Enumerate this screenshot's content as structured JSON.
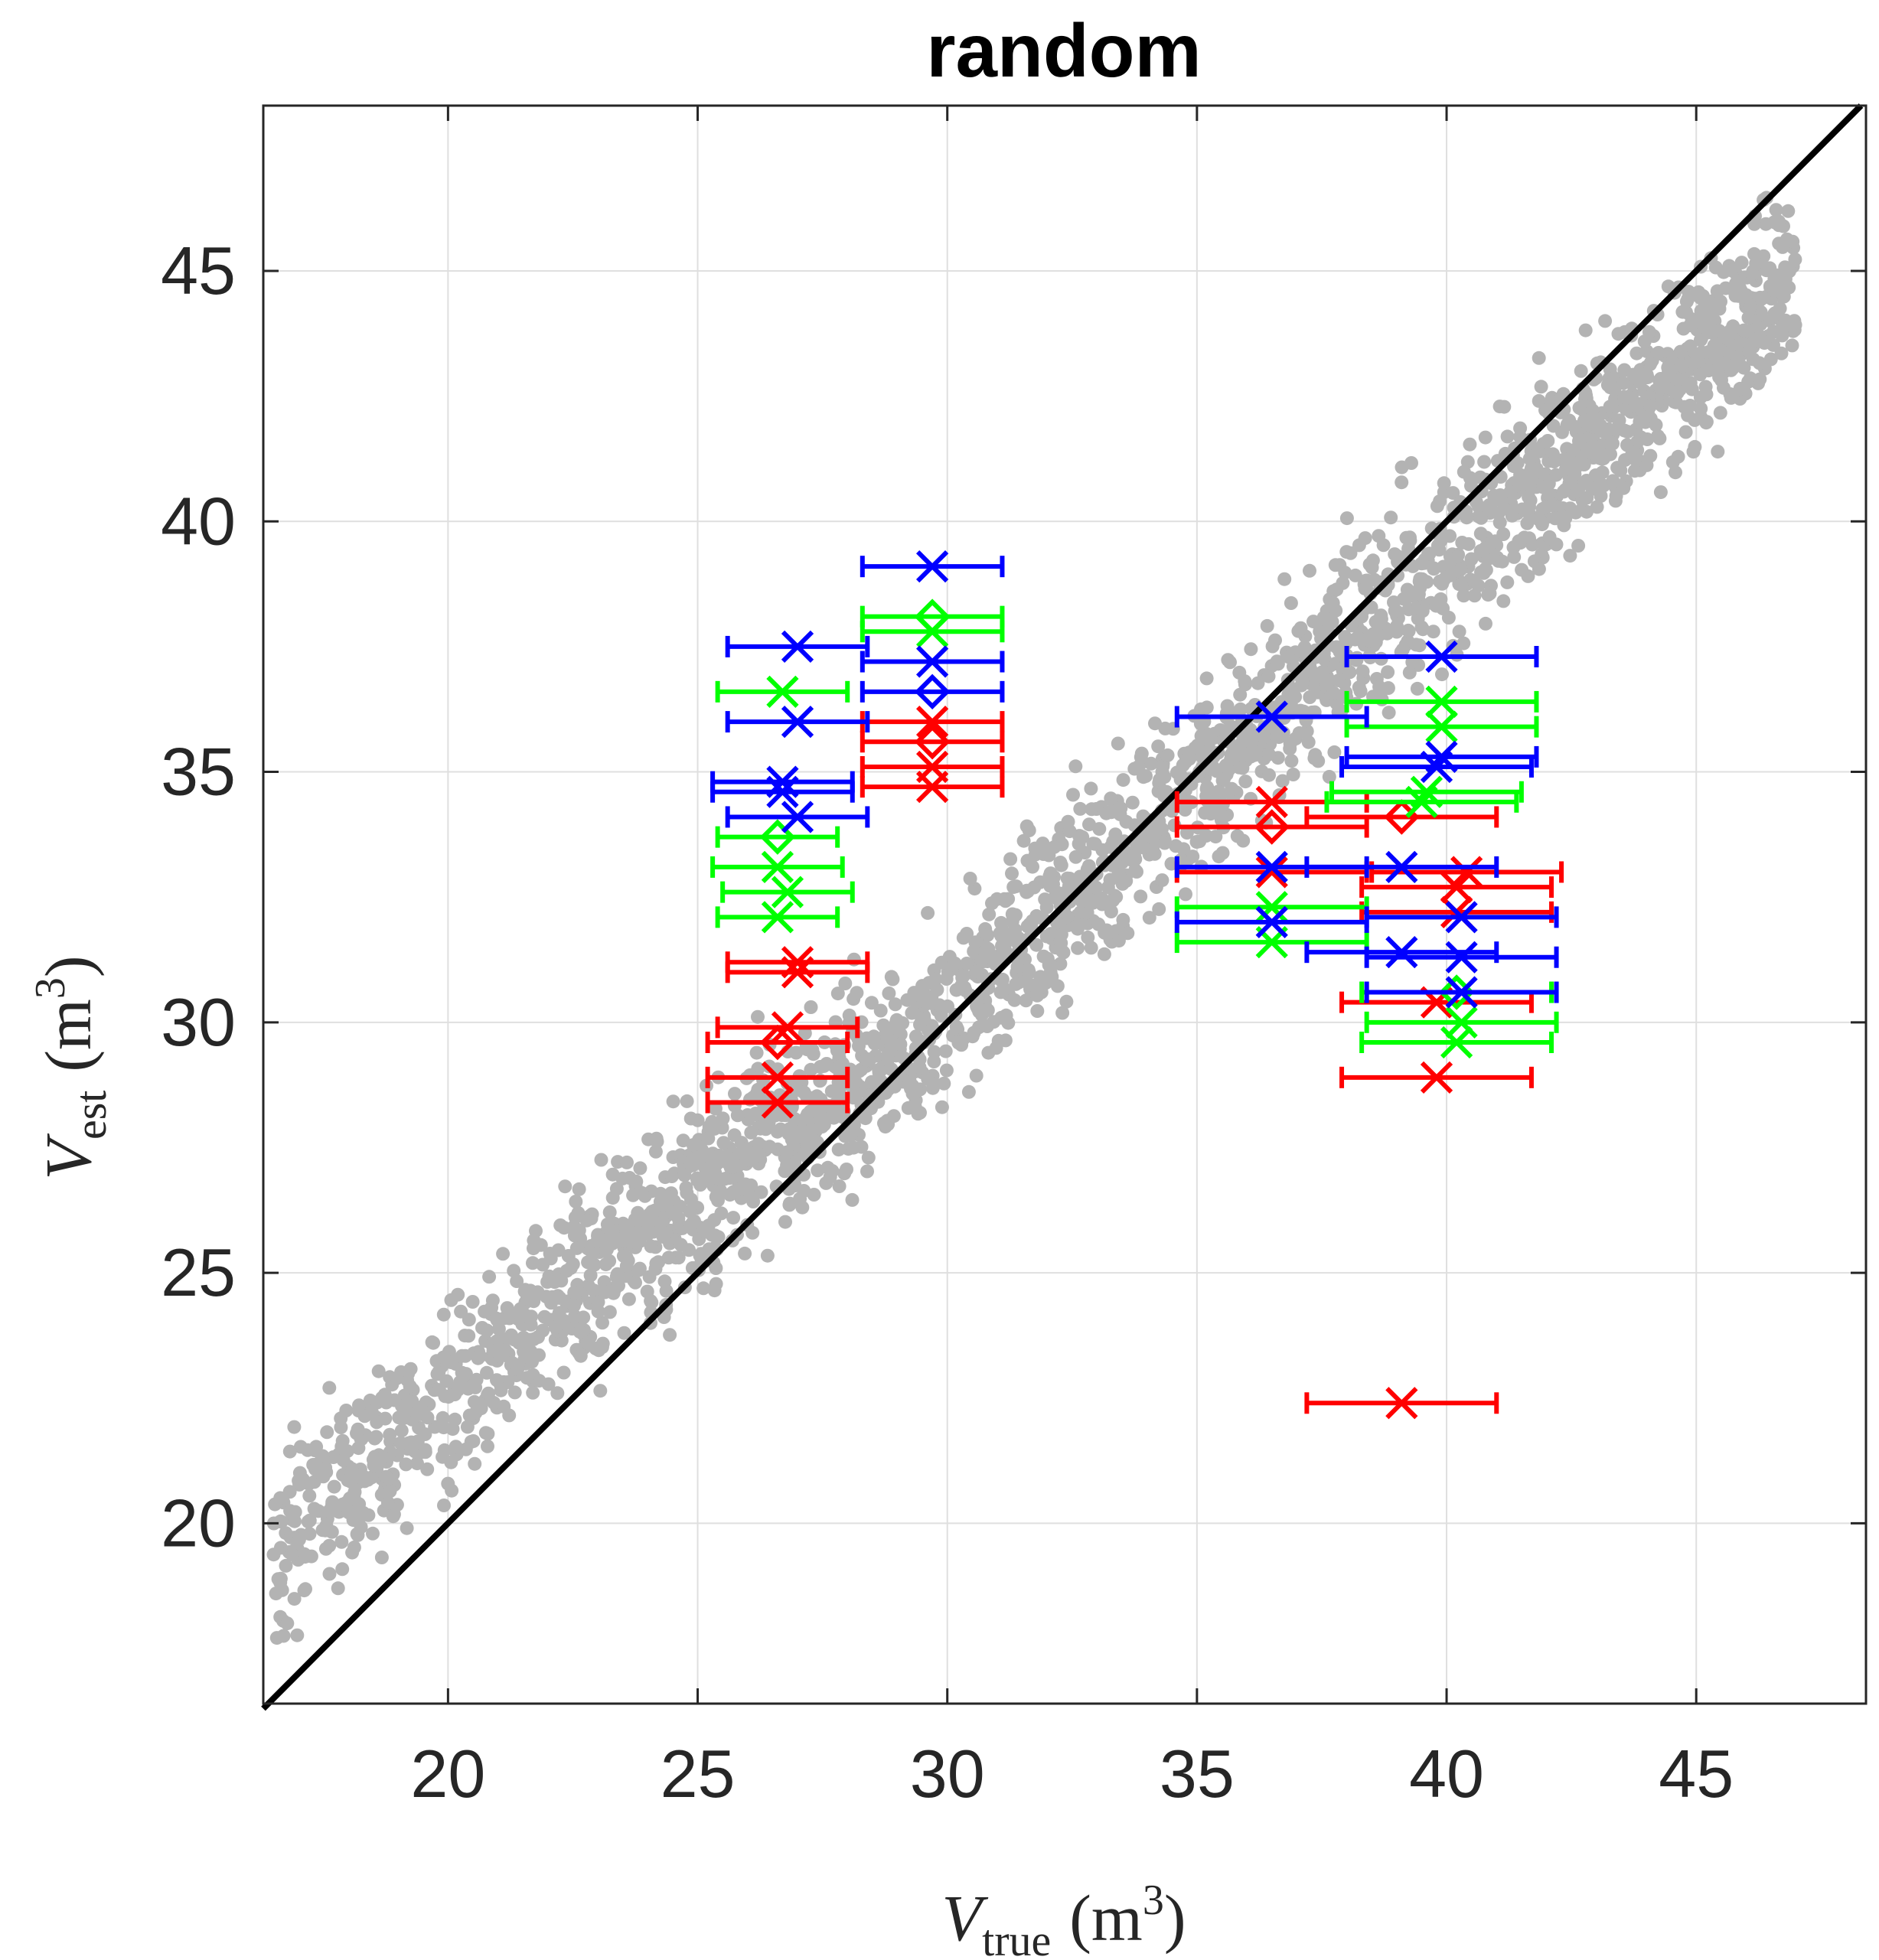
{
  "chart_data": {
    "type": "scatter",
    "title": "random",
    "xlabel": {
      "symbol": "V",
      "subscript": "true",
      "unit_base": "m",
      "unit_exp": "3"
    },
    "ylabel": {
      "symbol": "V",
      "subscript": "est",
      "unit_base": "m",
      "unit_exp": "3"
    },
    "xlim": [
      16.3,
      48.4
    ],
    "ylim": [
      16.4,
      48.3
    ],
    "xticks": [
      "20",
      "25",
      "30",
      "35",
      "40",
      "45"
    ],
    "xtick_values": [
      20,
      25,
      30,
      35,
      40,
      45
    ],
    "yticks": [
      "20",
      "25",
      "30",
      "35",
      "40",
      "45"
    ],
    "ytick_values": [
      20,
      25,
      30,
      35,
      40,
      45
    ],
    "grid": true,
    "reference_line": {
      "from": [
        16.3,
        16.3
      ],
      "to": [
        48.3,
        48.3
      ],
      "color": "#000000"
    },
    "colors": {
      "cloud": "#b3b3b3",
      "red": "#ff0000",
      "green": "#00ff00",
      "blue": "#0000ff",
      "axis": "#262626",
      "grid": "#dfdfdf"
    },
    "background_cloud": {
      "description": "dense gray scatter around identity line",
      "band": [
        [
          16.5,
          19.5
        ],
        [
          20,
          22.5
        ],
        [
          25,
          26.6
        ],
        [
          30,
          30.2
        ],
        [
          35,
          34.8
        ],
        [
          40,
          39.3
        ],
        [
          45,
          43.4
        ],
        [
          47,
          44.8
        ]
      ],
      "spread": 1.3,
      "count": 2600
    },
    "series": [
      {
        "color": "red",
        "points": [
          {
            "x": 27.0,
            "xerr": 1.4,
            "y": 31.2,
            "marker": "x"
          },
          {
            "x": 27.0,
            "xerr": 1.4,
            "y": 31.0,
            "marker": "x"
          },
          {
            "x": 26.8,
            "xerr": 1.4,
            "y": 29.9,
            "marker": "x"
          },
          {
            "x": 26.6,
            "xerr": 1.4,
            "y": 29.6,
            "marker": "diamond"
          },
          {
            "x": 26.6,
            "xerr": 1.4,
            "y": 28.9,
            "marker": "x"
          },
          {
            "x": 26.6,
            "xerr": 1.4,
            "y": 28.4,
            "marker": "x"
          },
          {
            "x": 29.7,
            "xerr": 1.4,
            "y": 36.0,
            "marker": "x"
          },
          {
            "x": 29.7,
            "xerr": 1.4,
            "y": 35.6,
            "marker": "diamond"
          },
          {
            "x": 29.7,
            "xerr": 1.4,
            "y": 35.1,
            "marker": "x"
          },
          {
            "x": 29.7,
            "xerr": 1.4,
            "y": 34.7,
            "marker": "x"
          },
          {
            "x": 36.5,
            "xerr": 1.9,
            "y": 34.4,
            "marker": "x"
          },
          {
            "x": 36.5,
            "xerr": 1.9,
            "y": 33.9,
            "marker": "diamond"
          },
          {
            "x": 36.5,
            "xerr": 1.9,
            "y": 33.0,
            "marker": "x"
          },
          {
            "x": 39.1,
            "xerr": 1.9,
            "y": 34.1,
            "marker": "diamond"
          },
          {
            "x": 40.4,
            "xerr": 1.9,
            "y": 33.0,
            "marker": "x"
          },
          {
            "x": 40.2,
            "xerr": 1.9,
            "y": 32.7,
            "marker": "x"
          },
          {
            "x": 40.2,
            "xerr": 1.9,
            "y": 32.2,
            "marker": "x"
          },
          {
            "x": 39.8,
            "xerr": 1.9,
            "y": 30.4,
            "marker": "x"
          },
          {
            "x": 39.8,
            "xerr": 1.9,
            "y": 28.9,
            "marker": "x"
          },
          {
            "x": 39.1,
            "xerr": 1.9,
            "y": 22.4,
            "marker": "x"
          }
        ]
      },
      {
        "color": "green",
        "points": [
          {
            "x": 26.7,
            "xerr": 1.3,
            "y": 36.6,
            "marker": "x"
          },
          {
            "x": 26.6,
            "xerr": 1.2,
            "y": 33.7,
            "marker": "diamond"
          },
          {
            "x": 26.6,
            "xerr": 1.3,
            "y": 33.1,
            "marker": "x"
          },
          {
            "x": 26.8,
            "xerr": 1.3,
            "y": 32.6,
            "marker": "x"
          },
          {
            "x": 26.6,
            "xerr": 1.2,
            "y": 32.1,
            "marker": "x"
          },
          {
            "x": 29.7,
            "xerr": 1.4,
            "y": 38.1,
            "marker": "diamond"
          },
          {
            "x": 29.7,
            "xerr": 1.4,
            "y": 37.8,
            "marker": "x"
          },
          {
            "x": 36.5,
            "xerr": 1.9,
            "y": 32.3,
            "marker": "x"
          },
          {
            "x": 36.5,
            "xerr": 1.9,
            "y": 31.6,
            "marker": "x"
          },
          {
            "x": 39.9,
            "xerr": 1.9,
            "y": 36.4,
            "marker": "x"
          },
          {
            "x": 39.9,
            "xerr": 1.9,
            "y": 35.9,
            "marker": "x"
          },
          {
            "x": 39.6,
            "xerr": 1.9,
            "y": 34.6,
            "marker": "x"
          },
          {
            "x": 39.5,
            "xerr": 1.9,
            "y": 34.4,
            "marker": "x"
          },
          {
            "x": 40.2,
            "xerr": 1.9,
            "y": 30.6,
            "marker": "diamond"
          },
          {
            "x": 40.3,
            "xerr": 1.9,
            "y": 30.0,
            "marker": "x"
          },
          {
            "x": 40.2,
            "xerr": 1.9,
            "y": 29.6,
            "marker": "x"
          }
        ]
      },
      {
        "color": "blue",
        "points": [
          {
            "x": 27.0,
            "xerr": 1.4,
            "y": 37.5,
            "marker": "x"
          },
          {
            "x": 27.0,
            "xerr": 1.4,
            "y": 36.0,
            "marker": "x"
          },
          {
            "x": 26.7,
            "xerr": 1.4,
            "y": 34.8,
            "marker": "x"
          },
          {
            "x": 26.7,
            "xerr": 1.4,
            "y": 34.6,
            "marker": "x"
          },
          {
            "x": 27.0,
            "xerr": 1.4,
            "y": 34.1,
            "marker": "x"
          },
          {
            "x": 29.7,
            "xerr": 1.4,
            "y": 39.1,
            "marker": "x"
          },
          {
            "x": 29.7,
            "xerr": 1.4,
            "y": 37.2,
            "marker": "x"
          },
          {
            "x": 29.7,
            "xerr": 1.4,
            "y": 36.6,
            "marker": "diamond"
          },
          {
            "x": 36.5,
            "xerr": 1.9,
            "y": 36.1,
            "marker": "x"
          },
          {
            "x": 36.5,
            "xerr": 1.9,
            "y": 33.1,
            "marker": "x"
          },
          {
            "x": 36.5,
            "xerr": 1.9,
            "y": 32.0,
            "marker": "x"
          },
          {
            "x": 39.9,
            "xerr": 1.9,
            "y": 37.3,
            "marker": "x"
          },
          {
            "x": 39.9,
            "xerr": 1.9,
            "y": 35.3,
            "marker": "x"
          },
          {
            "x": 39.8,
            "xerr": 1.9,
            "y": 35.1,
            "marker": "x"
          },
          {
            "x": 39.1,
            "xerr": 1.9,
            "y": 33.1,
            "marker": "x"
          },
          {
            "x": 40.3,
            "xerr": 1.9,
            "y": 32.1,
            "marker": "x"
          },
          {
            "x": 39.1,
            "xerr": 1.9,
            "y": 31.4,
            "marker": "x"
          },
          {
            "x": 40.3,
            "xerr": 1.9,
            "y": 31.3,
            "marker": "x"
          },
          {
            "x": 40.3,
            "xerr": 1.9,
            "y": 30.6,
            "marker": "x"
          }
        ]
      }
    ]
  }
}
